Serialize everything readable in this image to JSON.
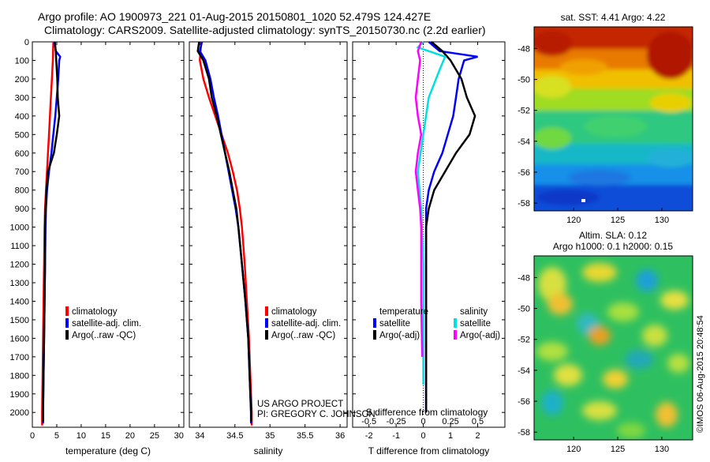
{
  "header": {
    "line1": "Argo profile: AO 1900973_221 01-Aug-2015 20150801_1020 52.479S 124.427E",
    "line2": "Climatology: CARS2009. Satellite-adjusted climatology: synTS_20150730.nc (2.2d earlier)"
  },
  "colors": {
    "climatology": "#ff0000",
    "satellite": "#0000ff",
    "argo": "#000000",
    "salinity_sat": "#00e0e0",
    "salinity_argo": "#ff00ff"
  },
  "chart_data": [
    {
      "type": "line",
      "name": "temperature-panel",
      "xlabel": "temperature (deg C)",
      "xlim": [
        0,
        31
      ],
      "xticks": [
        0,
        5,
        10,
        15,
        20,
        25,
        30
      ],
      "ylim": [
        0,
        2080
      ],
      "yticks": [
        0,
        100,
        200,
        300,
        400,
        500,
        600,
        700,
        800,
        900,
        1000,
        1100,
        1200,
        1300,
        1400,
        1500,
        1600,
        1700,
        1800,
        1900,
        2000
      ],
      "legend": [
        "climatology",
        "satellite-adj. clim.",
        "Argo(..raw -QC)"
      ],
      "series": [
        {
          "name": "climatology",
          "color": "#ff0000",
          "points": [
            [
              4.3,
              0
            ],
            [
              4.2,
              100
            ],
            [
              4.0,
              200
            ],
            [
              3.8,
              300
            ],
            [
              3.6,
              400
            ],
            [
              3.4,
              500
            ],
            [
              3.2,
              600
            ],
            [
              3.0,
              700
            ],
            [
              2.8,
              800
            ],
            [
              2.6,
              900
            ],
            [
              2.5,
              1000
            ],
            [
              2.4,
              1200
            ],
            [
              2.3,
              1400
            ],
            [
              2.2,
              1600
            ],
            [
              2.1,
              1800
            ],
            [
              2.0,
              2000
            ],
            [
              2.0,
              2070
            ]
          ]
        },
        {
          "name": "satellite-adj. clim.",
          "color": "#0000ff",
          "points": [
            [
              4.5,
              0
            ],
            [
              4.8,
              50
            ],
            [
              5.7,
              80
            ],
            [
              5.5,
              100
            ],
            [
              5.3,
              200
            ],
            [
              5.0,
              300
            ],
            [
              4.7,
              400
            ],
            [
              4.3,
              500
            ],
            [
              3.9,
              600
            ],
            [
              3.4,
              700
            ],
            [
              3.0,
              800
            ],
            [
              2.8,
              900
            ],
            [
              2.7,
              1000
            ],
            [
              2.6,
              1200
            ],
            [
              2.5,
              1400
            ],
            [
              2.4,
              1600
            ],
            [
              2.3,
              1800
            ],
            [
              2.2,
              2000
            ],
            [
              2.2,
              2060
            ]
          ]
        },
        {
          "name": "Argo(..raw -QC)",
          "color": "#000000",
          "points": [
            [
              4.6,
              0
            ],
            [
              4.8,
              50
            ],
            [
              4.9,
              100
            ],
            [
              5.1,
              200
            ],
            [
              5.2,
              300
            ],
            [
              5.5,
              400
            ],
            [
              5.0,
              500
            ],
            [
              4.4,
              600
            ],
            [
              3.8,
              650
            ],
            [
              3.2,
              700
            ],
            [
              2.9,
              800
            ],
            [
              2.7,
              900
            ],
            [
              2.6,
              1000
            ],
            [
              2.6,
              1200
            ],
            [
              2.5,
              1400
            ],
            [
              2.4,
              1600
            ],
            [
              2.3,
              1800
            ],
            [
              2.2,
              2000
            ],
            [
              2.2,
              2050
            ]
          ]
        }
      ]
    },
    {
      "type": "line",
      "name": "salinity-panel",
      "xlabel": "salinity",
      "xlim": [
        33.85,
        36.1
      ],
      "xticks": [
        34,
        34.5,
        35,
        35.5,
        36
      ],
      "ylim": [
        0,
        2080
      ],
      "legend": [
        "climatology",
        "satellite-adj. clim.",
        "Argo(..raw -QC)"
      ],
      "annotation": [
        "US ARGO PROJECT",
        "PI: GREGORY C. JOHNSON"
      ],
      "series": [
        {
          "name": "climatology",
          "color": "#ff0000",
          "points": [
            [
              34.02,
              0
            ],
            [
              34.0,
              100
            ],
            [
              34.05,
              200
            ],
            [
              34.13,
              300
            ],
            [
              34.22,
              400
            ],
            [
              34.31,
              500
            ],
            [
              34.4,
              600
            ],
            [
              34.47,
              700
            ],
            [
              34.53,
              800
            ],
            [
              34.57,
              900
            ],
            [
              34.6,
              1000
            ],
            [
              34.64,
              1200
            ],
            [
              34.67,
              1400
            ],
            [
              34.7,
              1600
            ],
            [
              34.72,
              1800
            ],
            [
              34.74,
              2000
            ],
            [
              34.74,
              2070
            ]
          ]
        },
        {
          "name": "satellite-adj. clim.",
          "color": "#0000ff",
          "points": [
            [
              34.03,
              0
            ],
            [
              34.0,
              50
            ],
            [
              34.08,
              100
            ],
            [
              34.15,
              200
            ],
            [
              34.2,
              300
            ],
            [
              34.26,
              400
            ],
            [
              34.31,
              500
            ],
            [
              34.36,
              600
            ],
            [
              34.41,
              700
            ],
            [
              34.46,
              800
            ],
            [
              34.51,
              900
            ],
            [
              34.55,
              1000
            ],
            [
              34.6,
              1200
            ],
            [
              34.65,
              1400
            ],
            [
              34.69,
              1600
            ],
            [
              34.71,
              1800
            ],
            [
              34.73,
              2000
            ],
            [
              34.73,
              2060
            ]
          ]
        },
        {
          "name": "Argo(..raw -QC)",
          "color": "#000000",
          "points": [
            [
              33.99,
              0
            ],
            [
              33.97,
              50
            ],
            [
              34.05,
              100
            ],
            [
              34.13,
              200
            ],
            [
              34.17,
              300
            ],
            [
              34.24,
              400
            ],
            [
              34.3,
              500
            ],
            [
              34.36,
              600
            ],
            [
              34.42,
              700
            ],
            [
              34.47,
              800
            ],
            [
              34.52,
              900
            ],
            [
              34.55,
              1000
            ],
            [
              34.6,
              1200
            ],
            [
              34.65,
              1400
            ],
            [
              34.69,
              1600
            ],
            [
              34.71,
              1800
            ],
            [
              34.73,
              2000
            ],
            [
              34.73,
              2050
            ]
          ]
        }
      ]
    },
    {
      "type": "line",
      "name": "difference-panel",
      "xlabel": "T difference from climatology",
      "xlabel_top": "S difference from climatology",
      "xlim": [
        -2.6,
        3.0
      ],
      "xticks": [
        -2,
        -1,
        0,
        1,
        2
      ],
      "sticks": [
        -0.5,
        -0.25,
        0,
        0.25,
        0.5
      ],
      "s_scale": 4,
      "ylim": [
        0,
        2080
      ],
      "legend_groups": [
        {
          "title": "temperature",
          "items": [
            "satellite",
            "Argo(-adj)"
          ]
        },
        {
          "title": "salinity",
          "items": [
            "satellite",
            "Argo(-adj)"
          ]
        }
      ],
      "series": [
        {
          "name": "temperature satellite",
          "color": "#0000ff",
          "points": [
            [
              0.2,
              0
            ],
            [
              0.6,
              50
            ],
            [
              2.0,
              80
            ],
            [
              1.5,
              100
            ],
            [
              1.3,
              200
            ],
            [
              1.2,
              300
            ],
            [
              1.1,
              400
            ],
            [
              0.9,
              500
            ],
            [
              0.7,
              600
            ],
            [
              0.4,
              700
            ],
            [
              0.2,
              800
            ],
            [
              0.1,
              900
            ],
            [
              0.1,
              1000
            ],
            [
              0.1,
              1200
            ],
            [
              0.1,
              1400
            ],
            [
              0.1,
              1600
            ],
            [
              0.1,
              1800
            ],
            [
              0.1,
              2000
            ]
          ]
        },
        {
          "name": "temperature Argo(-adj)",
          "color": "#000000",
          "points": [
            [
              0.3,
              0
            ],
            [
              0.7,
              50
            ],
            [
              1.0,
              100
            ],
            [
              1.4,
              200
            ],
            [
              1.6,
              300
            ],
            [
              1.9,
              400
            ],
            [
              1.7,
              500
            ],
            [
              1.2,
              600
            ],
            [
              0.8,
              700
            ],
            [
              0.4,
              800
            ],
            [
              0.2,
              900
            ],
            [
              0.1,
              1000
            ],
            [
              0.1,
              1200
            ],
            [
              0.1,
              1400
            ],
            [
              0.1,
              1600
            ],
            [
              0.1,
              1800
            ],
            [
              0.1,
              2000
            ]
          ]
        },
        {
          "name": "salinity satellite",
          "color": "#00e0e0",
          "points": [
            [
              0.0,
              0
            ],
            [
              -0.05,
              30
            ],
            [
              0.2,
              80
            ],
            [
              0.15,
              150
            ],
            [
              0.05,
              300
            ],
            [
              0.0,
              500
            ],
            [
              -0.05,
              700
            ],
            [
              -0.02,
              900
            ],
            [
              0.0,
              1200
            ],
            [
              0.0,
              1600
            ],
            [
              0.0,
              1850
            ]
          ]
        },
        {
          "name": "salinity Argo(-adj)",
          "color": "#ff00ff",
          "points": [
            [
              -0.02,
              0
            ],
            [
              -0.05,
              50
            ],
            [
              -0.03,
              100
            ],
            [
              -0.05,
              200
            ],
            [
              -0.07,
              300
            ],
            [
              -0.05,
              400
            ],
            [
              -0.02,
              500
            ],
            [
              -0.05,
              600
            ],
            [
              -0.07,
              700
            ],
            [
              -0.05,
              800
            ],
            [
              -0.03,
              900
            ],
            [
              -0.02,
              1000
            ],
            [
              -0.02,
              1200
            ],
            [
              -0.02,
              1400
            ],
            [
              -0.01,
              1700
            ]
          ]
        }
      ]
    },
    {
      "type": "heatmap",
      "name": "sst-map",
      "title": "sat. SST: 4.41  Argo: 4.22",
      "xticks": [
        120,
        125,
        130
      ],
      "yticks": [
        -48,
        -50,
        -52,
        -54,
        -56,
        -58
      ],
      "xlim": [
        115.5,
        133.5
      ],
      "ylim": [
        -58.5,
        -46.6
      ]
    },
    {
      "type": "heatmap",
      "name": "sla-map",
      "title_line1": "Altim. SLA: 0.12",
      "title_line2": "Argo h1000: 0.1 h2000: 0.15",
      "xticks": [
        120,
        125,
        130
      ],
      "yticks": [
        -48,
        -50,
        -52,
        -54,
        -56,
        -58
      ],
      "xlim": [
        115.5,
        133.5
      ],
      "ylim": [
        -58.5,
        -46.6
      ]
    }
  ],
  "depth_labels_note": "",
  "watermark": "©IMOS 06-Aug-2015 20:48:54"
}
